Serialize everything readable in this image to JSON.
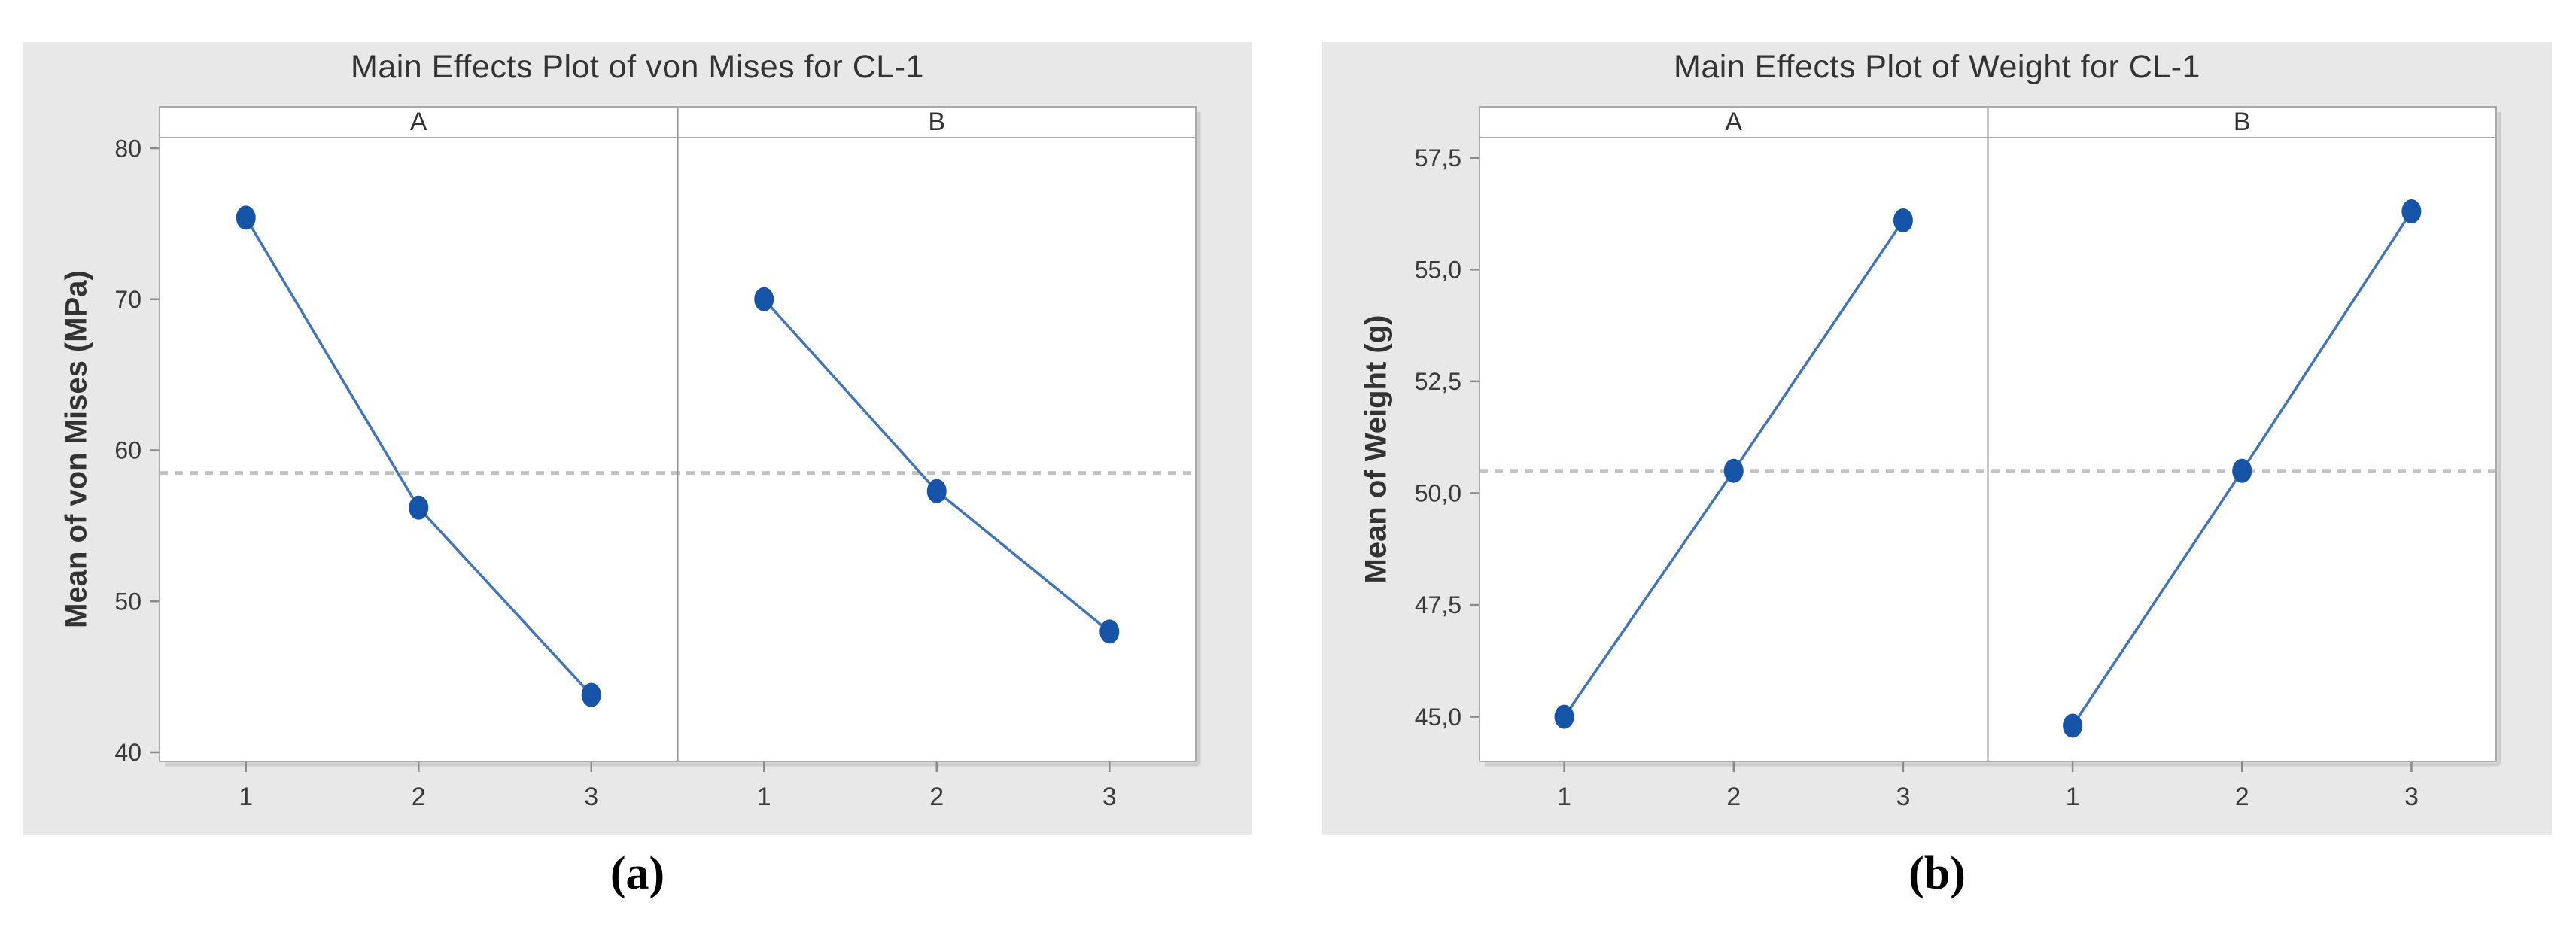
{
  "colors": {
    "figure_bg": "#e8e8e8",
    "plot_bg": "#ffffff",
    "plot_border": "#a9a9a9",
    "plot_shadow": "#cdcdcd",
    "panel_divider": "#8f8f8f",
    "mean_line": "#c2c2c2",
    "tick_mark": "#8a8a8a",
    "tick_text": "#3a3a3a",
    "panel_label_text": "#333333",
    "data_line": "#4075ba",
    "data_marker": "#1554a6"
  },
  "chart_data": [
    {
      "type": "line",
      "title": "Main Effects Plot of von Mises for CL-1",
      "ylabel": "Mean of von Mises (MPa)",
      "xlabel": "",
      "caption": "(a)",
      "categories": [
        "1",
        "2",
        "3"
      ],
      "series": [
        {
          "name": "A",
          "values": [
            75.4,
            56.2,
            43.8
          ]
        },
        {
          "name": "B",
          "values": [
            70.0,
            57.3,
            48.0
          ]
        }
      ],
      "mean_line": 58.5,
      "y_ticks": {
        "labels": [
          "80",
          "70",
          "60",
          "50",
          "40"
        ],
        "values": [
          80,
          70,
          60,
          50,
          40
        ]
      },
      "ylim": [
        39.4,
        80.7
      ],
      "grid": false,
      "legend": "none"
    },
    {
      "type": "line",
      "title": "Main Effects Plot of Weight for CL-1",
      "ylabel": "Mean of Weight (g)",
      "xlabel": "",
      "caption": "(b)",
      "categories": [
        "1",
        "2",
        "3"
      ],
      "series": [
        {
          "name": "A",
          "values": [
            45.0,
            50.5,
            56.1
          ]
        },
        {
          "name": "B",
          "values": [
            44.8,
            50.5,
            56.3
          ]
        }
      ],
      "mean_line": 50.5,
      "y_ticks": {
        "labels": [
          "57,5",
          "55,0",
          "52,5",
          "50,0",
          "47,5",
          "45,0"
        ],
        "values": [
          57.5,
          55.0,
          52.5,
          50.0,
          47.5,
          45.0
        ]
      },
      "ylim": [
        44.0,
        57.95
      ],
      "grid": false,
      "legend": "none"
    }
  ]
}
